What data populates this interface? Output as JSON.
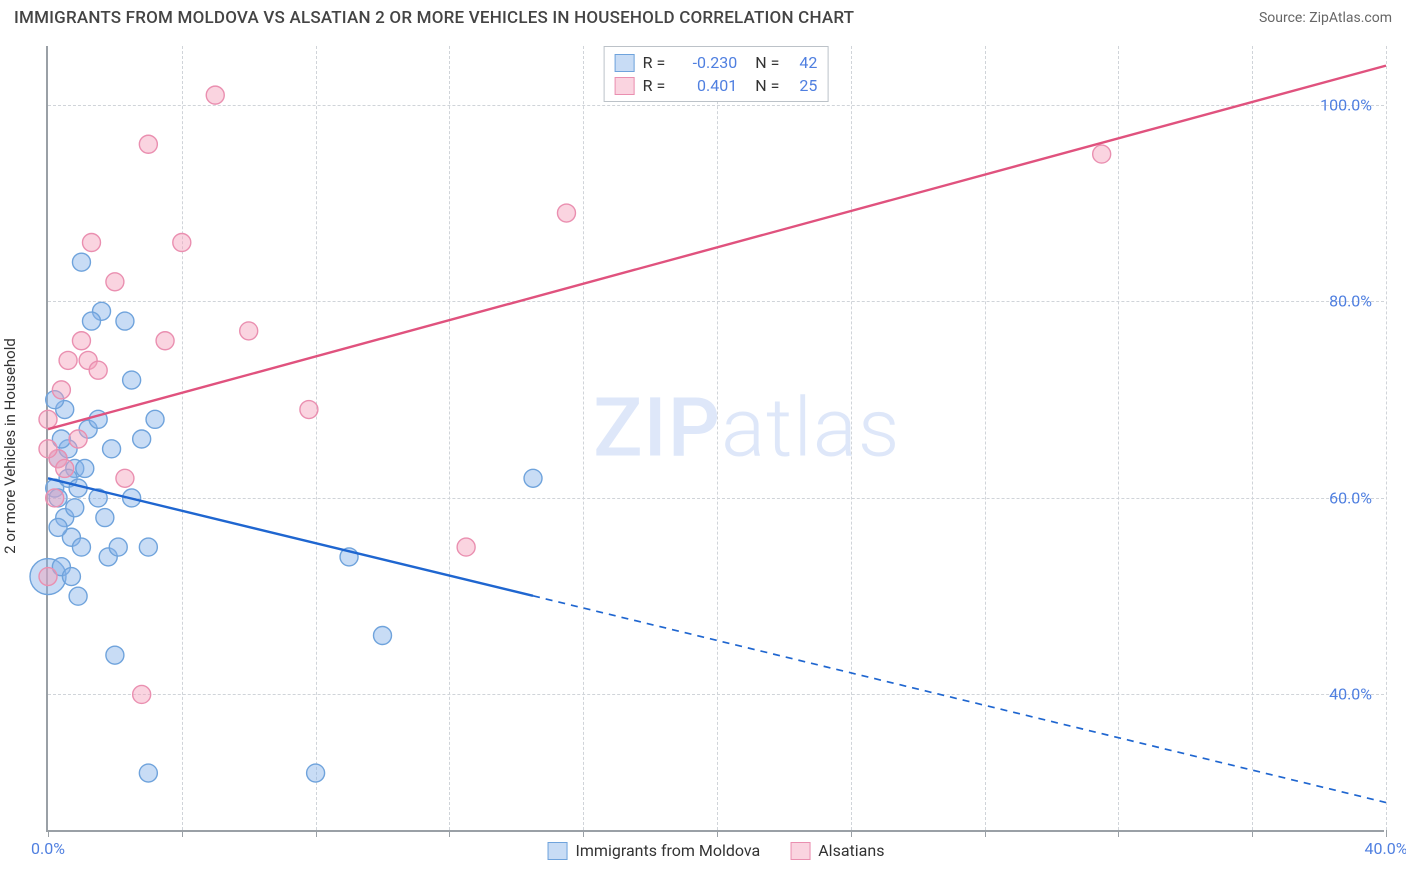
{
  "title": "IMMIGRANTS FROM MOLDOVA VS ALSATIAN 2 OR MORE VEHICLES IN HOUSEHOLD CORRELATION CHART",
  "source_label": "Source: ZipAtlas.com",
  "y_axis_label": "2 or more Vehicles in Household",
  "watermark": "ZIPatlas",
  "chart": {
    "type": "scatter",
    "background_color": "#ffffff",
    "grid_color": "#d0d4d9",
    "axis_color": "#9aa0a6",
    "tick_label_color": "#4f7fe0",
    "xlim": [
      0,
      40
    ],
    "ylim": [
      26,
      106
    ],
    "y_ticks": [
      40,
      60,
      80,
      100
    ],
    "x_ticks": [
      0,
      4,
      8,
      12,
      16,
      20,
      24,
      28,
      32,
      36,
      40
    ],
    "x_tick_labels": {
      "0": "0.0%",
      "40": "40.0%"
    },
    "y_tick_labels": {
      "40": "40.0%",
      "60": "60.0%",
      "80": "80.0%",
      "100": "100.0%"
    },
    "series": [
      {
        "name": "Immigrants from Moldova",
        "color_fill": "rgba(133, 178, 232, 0.45)",
        "color_stroke": "#6fa3dc",
        "line_color": "#1f66d0",
        "line_width": 2.4,
        "line_solid_until_x": 14.5,
        "marker_radius": 9,
        "R": "-0.230",
        "N": "42",
        "regression": {
          "x1": 0,
          "y1": 62,
          "x2": 40,
          "y2": 29
        },
        "points": [
          {
            "x": 0.2,
            "y": 61,
            "r": 9
          },
          {
            "x": 0.0,
            "y": 52,
            "r": 18
          },
          {
            "x": 0.3,
            "y": 64,
            "r": 9
          },
          {
            "x": 0.3,
            "y": 60,
            "r": 9
          },
          {
            "x": 0.5,
            "y": 58,
            "r": 9
          },
          {
            "x": 0.7,
            "y": 56,
            "r": 9
          },
          {
            "x": 0.6,
            "y": 65,
            "r": 9
          },
          {
            "x": 0.8,
            "y": 63,
            "r": 9
          },
          {
            "x": 0.5,
            "y": 69,
            "r": 9
          },
          {
            "x": 1.0,
            "y": 84,
            "r": 9
          },
          {
            "x": 1.6,
            "y": 79,
            "r": 9
          },
          {
            "x": 1.2,
            "y": 67,
            "r": 9
          },
          {
            "x": 1.3,
            "y": 78,
            "r": 9
          },
          {
            "x": 1.5,
            "y": 68,
            "r": 9
          },
          {
            "x": 1.7,
            "y": 58,
            "r": 9
          },
          {
            "x": 1.8,
            "y": 54,
            "r": 9
          },
          {
            "x": 2.3,
            "y": 78,
            "r": 9
          },
          {
            "x": 2.5,
            "y": 72,
            "r": 9
          },
          {
            "x": 2.8,
            "y": 66,
            "r": 9
          },
          {
            "x": 3.2,
            "y": 68,
            "r": 9
          },
          {
            "x": 1.0,
            "y": 55,
            "r": 9
          },
          {
            "x": 0.4,
            "y": 53,
            "r": 9
          },
          {
            "x": 0.8,
            "y": 59,
            "r": 9
          },
          {
            "x": 0.9,
            "y": 50,
            "r": 9
          },
          {
            "x": 0.3,
            "y": 57,
            "r": 9
          },
          {
            "x": 2.0,
            "y": 44,
            "r": 9
          },
          {
            "x": 2.1,
            "y": 55,
            "r": 9
          },
          {
            "x": 3.0,
            "y": 55,
            "r": 9
          },
          {
            "x": 10.0,
            "y": 46,
            "r": 9
          },
          {
            "x": 14.5,
            "y": 62,
            "r": 9
          },
          {
            "x": 3.0,
            "y": 32,
            "r": 9
          },
          {
            "x": 8.0,
            "y": 32,
            "r": 9
          },
          {
            "x": 0.6,
            "y": 62,
            "r": 9
          },
          {
            "x": 0.9,
            "y": 61,
            "r": 9
          },
          {
            "x": 1.1,
            "y": 63,
            "r": 9
          },
          {
            "x": 0.4,
            "y": 66,
            "r": 9
          },
          {
            "x": 0.2,
            "y": 70,
            "r": 9
          },
          {
            "x": 1.5,
            "y": 60,
            "r": 9
          },
          {
            "x": 0.7,
            "y": 52,
            "r": 9
          },
          {
            "x": 1.9,
            "y": 65,
            "r": 9
          },
          {
            "x": 2.5,
            "y": 60,
            "r": 9
          },
          {
            "x": 9.0,
            "y": 54,
            "r": 9
          }
        ]
      },
      {
        "name": "Alsatians",
        "color_fill": "rgba(244, 160, 186, 0.45)",
        "color_stroke": "#ea8fb0",
        "line_color": "#e0527e",
        "line_width": 2.4,
        "line_solid_until_x": 40,
        "marker_radius": 9,
        "R": "0.401",
        "N": "25",
        "regression": {
          "x1": 0,
          "y1": 67,
          "x2": 40,
          "y2": 104
        },
        "points": [
          {
            "x": 0.3,
            "y": 64,
            "r": 9
          },
          {
            "x": 0.4,
            "y": 71,
            "r": 9
          },
          {
            "x": 0.6,
            "y": 74,
            "r": 9
          },
          {
            "x": 0.9,
            "y": 66,
            "r": 9
          },
          {
            "x": 1.0,
            "y": 76,
            "r": 9
          },
          {
            "x": 1.2,
            "y": 74,
            "r": 9
          },
          {
            "x": 1.5,
            "y": 73,
            "r": 9
          },
          {
            "x": 1.3,
            "y": 86,
            "r": 9
          },
          {
            "x": 2.0,
            "y": 82,
            "r": 9
          },
          {
            "x": 2.3,
            "y": 62,
            "r": 9
          },
          {
            "x": 3.0,
            "y": 96,
            "r": 9
          },
          {
            "x": 4.0,
            "y": 86,
            "r": 9
          },
          {
            "x": 5.0,
            "y": 101,
            "r": 9
          },
          {
            "x": 6.0,
            "y": 77,
            "r": 9
          },
          {
            "x": 7.8,
            "y": 69,
            "r": 9
          },
          {
            "x": 12.5,
            "y": 55,
            "r": 9
          },
          {
            "x": 15.5,
            "y": 89,
            "r": 9
          },
          {
            "x": 31.5,
            "y": 95,
            "r": 9
          },
          {
            "x": 0.2,
            "y": 60,
            "r": 9
          },
          {
            "x": 0.5,
            "y": 63,
            "r": 9
          },
          {
            "x": 0.0,
            "y": 52,
            "r": 9
          },
          {
            "x": 0.0,
            "y": 65,
            "r": 9
          },
          {
            "x": 0.0,
            "y": 68,
            "r": 9
          },
          {
            "x": 2.8,
            "y": 40,
            "r": 9
          },
          {
            "x": 3.5,
            "y": 76,
            "r": 9
          }
        ]
      }
    ]
  }
}
